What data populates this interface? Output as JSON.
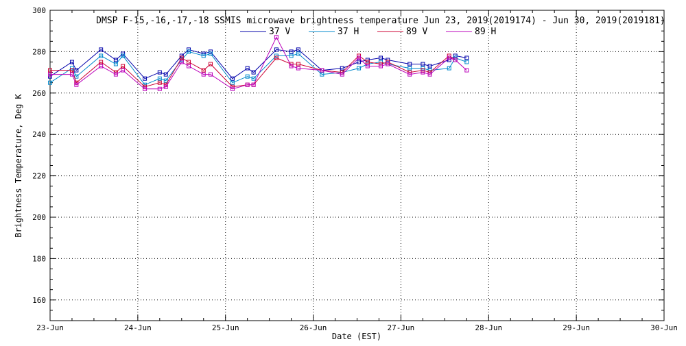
{
  "chart_data": {
    "type": "line",
    "title": "DMSP F-15,-16,-17,-18 SSMIS microwave brightness temperature Jun 23, 2019(2019174) - Jun 30, 2019(2019181)",
    "xlabel": "Date (EST)",
    "ylabel": "Brightness Temperature, Deg K",
    "xlim": [
      0,
      7
    ],
    "ylim": [
      150,
      300
    ],
    "x_ticks": [
      {
        "value": 0,
        "label": "23-Jun"
      },
      {
        "value": 1,
        "label": "24-Jun"
      },
      {
        "value": 2,
        "label": "25-Jun"
      },
      {
        "value": 3,
        "label": "26-Jun"
      },
      {
        "value": 4,
        "label": "27-Jun"
      },
      {
        "value": 5,
        "label": "28-Jun"
      },
      {
        "value": 6,
        "label": "29-Jun"
      },
      {
        "value": 7,
        "label": "30-Jun"
      }
    ],
    "y_ticks": [
      160,
      180,
      200,
      220,
      240,
      260,
      280,
      300
    ],
    "grid": true,
    "legend_placement": "top-center",
    "x_days": [
      0.0,
      0.25,
      0.3,
      0.58,
      0.75,
      0.83,
      1.08,
      1.25,
      1.32,
      1.5,
      1.58,
      1.75,
      1.83,
      2.08,
      2.25,
      2.32,
      2.58,
      2.75,
      2.83,
      3.1,
      3.33,
      3.52,
      3.62,
      3.77,
      3.85,
      4.1,
      4.25,
      4.33,
      4.55,
      4.62,
      4.75
    ],
    "series": [
      {
        "name": "37 V",
        "color": "#0000aa",
        "values": [
          268,
          275,
          271,
          281,
          276,
          279,
          267,
          270,
          269,
          278,
          281,
          279,
          280,
          267,
          272,
          270,
          281,
          280,
          281,
          271,
          272,
          275,
          276,
          277,
          276,
          274,
          274,
          273,
          276,
          278,
          277
        ]
      },
      {
        "name": "37 H",
        "color": "#0088cc",
        "values": [
          265,
          272,
          268,
          278,
          274,
          278,
          264,
          267,
          266,
          276,
          280,
          278,
          279,
          265,
          268,
          267,
          278,
          278,
          279,
          269,
          270,
          272,
          274,
          275,
          274,
          272,
          272,
          271,
          272,
          277,
          275
        ]
      },
      {
        "name": "89 V",
        "color": "#cc0033",
        "values": [
          271,
          271,
          265,
          275,
          270,
          273,
          263,
          265,
          264,
          277,
          275,
          271,
          274,
          263,
          264,
          264,
          277,
          274,
          274,
          271,
          270,
          278,
          275,
          274,
          275,
          270,
          271,
          270,
          278,
          276,
          null
        ]
      },
      {
        "name": "89 H",
        "color": "#bb00bb",
        "values": [
          269,
          269,
          264,
          273,
          269,
          271,
          262,
          262,
          263,
          275,
          273,
          269,
          269,
          262,
          264,
          264,
          287,
          273,
          272,
          271,
          269,
          277,
          273,
          273,
          274,
          269,
          270,
          269,
          277,
          276,
          271
        ]
      }
    ]
  }
}
